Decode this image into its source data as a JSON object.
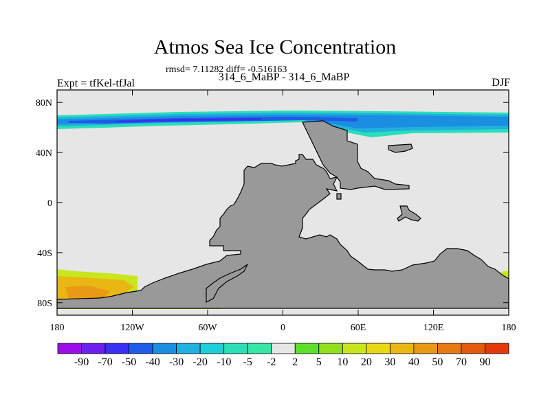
{
  "chart_data": {
    "type": "heatmap",
    "title": "Atmos Sea Ice Concentration",
    "stats_text": "rmsd= 7.11282 diff= -0.516163",
    "subtitle": "314_6_MaBP - 314_6_MaBP",
    "left_label": "Expt = tfKel-tfJal",
    "right_label": "DJF",
    "x_ticks": [
      "180",
      "120W",
      "60W",
      "0",
      "60E",
      "120E",
      "180"
    ],
    "x_tick_values": [
      -180,
      -120,
      -60,
      0,
      60,
      120,
      180
    ],
    "y_ticks": [
      "80N",
      "40N",
      "0",
      "40S",
      "80S"
    ],
    "y_tick_values": [
      80,
      40,
      0,
      -40,
      -80
    ],
    "xlim": [
      -180,
      180
    ],
    "ylim": [
      -90,
      90
    ],
    "colorbar": {
      "labels": [
        "-90",
        "-70",
        "-50",
        "-40",
        "-30",
        "-20",
        "-10",
        "-5",
        "-2",
        "2",
        "5",
        "10",
        "20",
        "30",
        "40",
        "50",
        "70",
        "90"
      ],
      "colors": [
        "#9a0fe8",
        "#6e1ff0",
        "#3b2ff5",
        "#1e5be6",
        "#1a8ee0",
        "#20b0e0",
        "#1ccfd8",
        "#2adfb8",
        "#36e6a4",
        "#e6e6e6",
        "#5ee02a",
        "#94df1c",
        "#c8e51e",
        "#e8d818",
        "#eab614",
        "#e89a14",
        "#e77a10",
        "#e35a0c",
        "#e23a0c"
      ]
    }
  }
}
